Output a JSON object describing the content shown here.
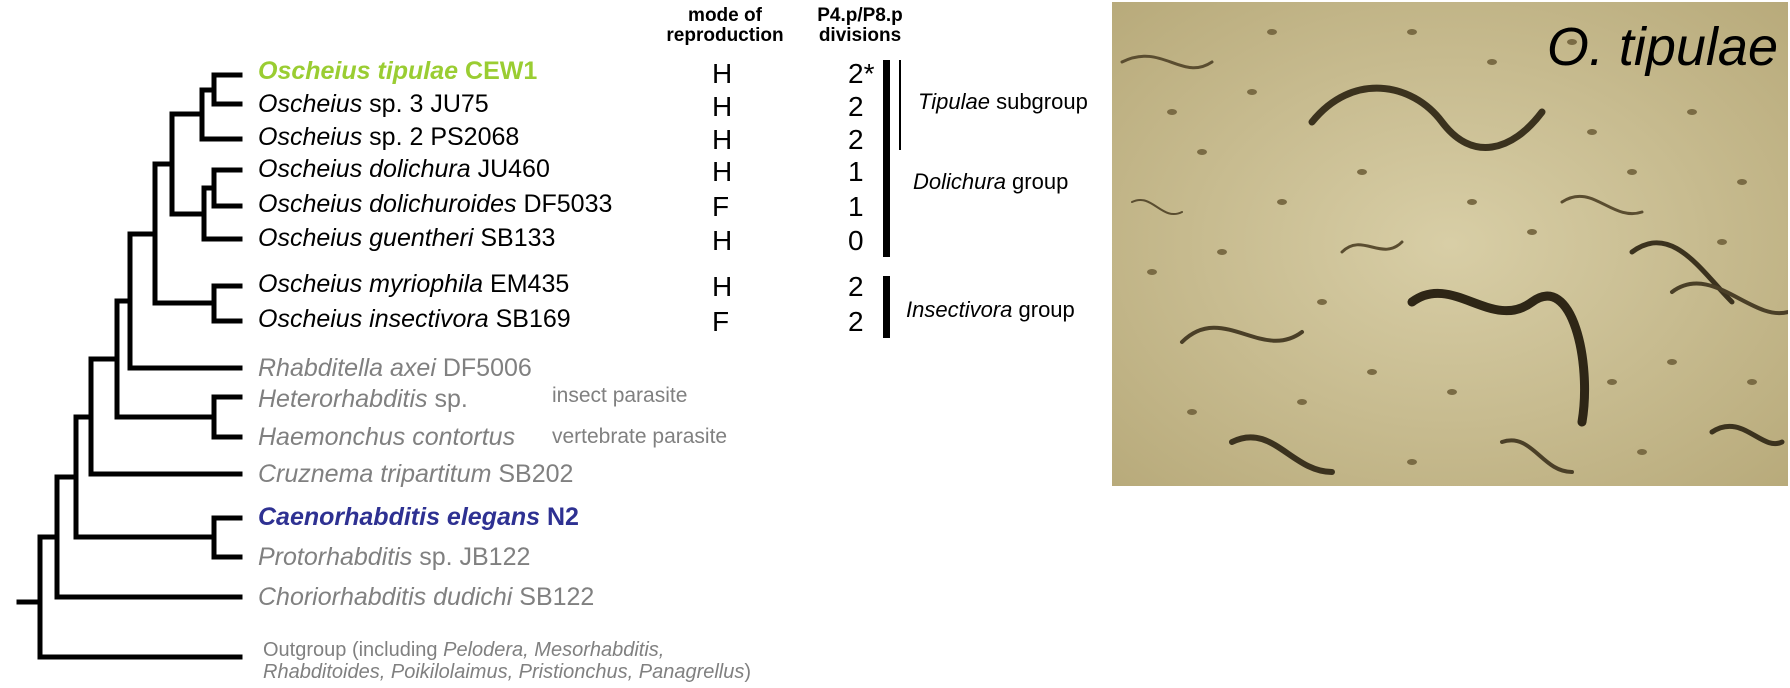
{
  "header": {
    "mode_line1": "mode of",
    "mode_line2": "reproduction",
    "div_line1": "P4.p/P8.p",
    "div_line2": "divisions"
  },
  "taxa": [
    {
      "genus": "Oscheius tipulae",
      "strain": "CEW1",
      "mode": "H",
      "div": "2*"
    },
    {
      "genus": "Oscheius",
      "strain": "sp. 3 JU75",
      "mode": "H",
      "div": "2"
    },
    {
      "genus": "Oscheius",
      "strain": "sp. 2 PS2068",
      "mode": "H",
      "div": "2"
    },
    {
      "genus": "Oscheius dolichura",
      "strain": "JU460",
      "mode": "H",
      "div": "1"
    },
    {
      "genus": "Oscheius dolichuroides",
      "strain": "DF5033",
      "mode": "F",
      "div": "1"
    },
    {
      "genus": "Oscheius guentheri",
      "strain": "SB133",
      "mode": "H",
      "div": "0"
    },
    {
      "genus": "Oscheius myriophila",
      "strain": "EM435",
      "mode": "H",
      "div": "2"
    },
    {
      "genus": "Oscheius insectivora",
      "strain": "SB169",
      "mode": "F",
      "div": "2"
    },
    {
      "genus": "Rhabditella axei",
      "strain": "DF5006"
    },
    {
      "genus": "Heterorhabditis",
      "strain": "sp."
    },
    {
      "genus": "Haemonchus contortus",
      "strain": ""
    },
    {
      "genus": "Cruznema tripartitum",
      "strain": "SB202"
    },
    {
      "genus": "Caenorhabditis elegans",
      "strain": "N2"
    },
    {
      "genus": "Protorhabditis",
      "strain": "sp. JB122"
    },
    {
      "genus": "Choriorhabditis dudichi",
      "strain": "SB122"
    }
  ],
  "notes": {
    "insect": "insect parasite",
    "vertebrate": "vertebrate parasite"
  },
  "groups": {
    "tipulae_italic": "Tipulae",
    "tipulae_rest": " subgroup",
    "dolichura_italic": "Dolichura",
    "dolichura_rest": " group",
    "insectivora_italic": "Insectivora",
    "insectivora_rest": " group"
  },
  "outgroup": {
    "prefix": "Outgroup (including ",
    "names1": "Pelodera, Mesorhabditis,",
    "names2": "Rhabditoides, Poikilolaimus, Pristionchus, Panagrellus",
    "suffix": ")"
  },
  "photo_label": "O. tipulae",
  "colors": {
    "highlight_green": "#9ACD32",
    "highlight_blue": "#2E3192",
    "grey_taxa": "#808080",
    "photo_bg": "#c9bd93"
  }
}
